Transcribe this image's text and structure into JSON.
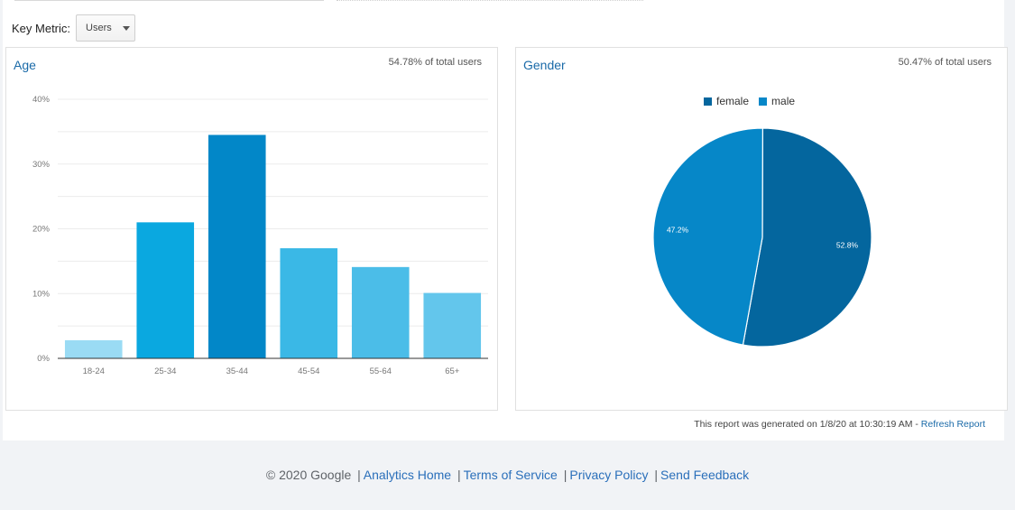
{
  "controls": {
    "key_metric_label": "Key Metric:",
    "key_metric_value": "Users"
  },
  "chart_data": [
    {
      "type": "bar",
      "title": "Age",
      "subtitle": "54.78% of total users",
      "categories": [
        "18-24",
        "25-34",
        "35-44",
        "45-54",
        "55-64",
        "65+"
      ],
      "values": [
        2.8,
        21.0,
        34.5,
        17.0,
        14.1,
        10.1
      ],
      "ylim": [
        0,
        40
      ],
      "yticks": [
        "0%",
        "10%",
        "20%",
        "30%",
        "40%"
      ],
      "ytick_values": [
        0,
        10,
        20,
        30,
        40
      ],
      "colors": [
        "#9adbf4",
        "#0aa8e0",
        "#0287c8",
        "#3ab8e6",
        "#4bbde8",
        "#63c6ec"
      ],
      "grid": true
    },
    {
      "type": "pie",
      "title": "Gender",
      "subtitle": "50.47% of total users",
      "legend_position": "top",
      "slices": [
        {
          "name": "female",
          "value": 52.8,
          "label": "52.8%",
          "color": "#04669e"
        },
        {
          "name": "male",
          "value": 47.2,
          "label": "47.2%",
          "color": "#0687c8"
        }
      ]
    }
  ],
  "report": {
    "generated_text": "This report was generated on 1/8/20 at 10:30:19 AM - ",
    "refresh_label": "Refresh Report"
  },
  "footer": {
    "copyright": "© 2020 Google",
    "links": [
      "Analytics Home",
      "Terms of Service",
      "Privacy Policy",
      "Send Feedback"
    ]
  }
}
